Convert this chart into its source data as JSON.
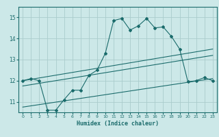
{
  "xlabel": "Humidex (Indice chaleur)",
  "ylabel": "",
  "bg_color": "#cce8e8",
  "grid_color": "#aacccc",
  "line_color": "#1a6b6b",
  "xlim": [
    -0.5,
    23.5
  ],
  "ylim": [
    10.5,
    15.5
  ],
  "yticks": [
    11,
    12,
    13,
    14,
    15
  ],
  "xticks": [
    0,
    1,
    2,
    3,
    4,
    5,
    6,
    7,
    8,
    9,
    10,
    11,
    12,
    13,
    14,
    15,
    16,
    17,
    18,
    19,
    20,
    21,
    22,
    23
  ],
  "main_line": {
    "x": [
      0,
      1,
      2,
      3,
      4,
      5,
      6,
      7,
      8,
      9,
      10,
      11,
      12,
      13,
      14,
      15,
      16,
      17,
      18,
      19,
      20,
      21,
      22,
      23
    ],
    "y": [
      12.0,
      12.1,
      12.0,
      10.6,
      10.6,
      11.1,
      11.55,
      11.55,
      12.25,
      12.5,
      13.3,
      14.85,
      14.95,
      14.4,
      14.6,
      14.95,
      14.5,
      14.55,
      14.1,
      13.5,
      11.95,
      12.0,
      12.15,
      12.0
    ]
  },
  "trend_line1": {
    "x": [
      0,
      23
    ],
    "y": [
      12.0,
      13.5
    ]
  },
  "trend_line2": {
    "x": [
      0,
      23
    ],
    "y": [
      11.75,
      13.2
    ]
  },
  "trend_line3": {
    "x": [
      0,
      23
    ],
    "y": [
      10.75,
      12.1
    ]
  }
}
